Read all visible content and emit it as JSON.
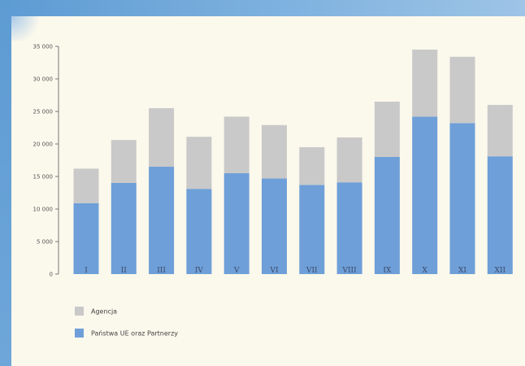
{
  "chart_data": {
    "type": "bar",
    "stacked": true,
    "categories": [
      "I",
      "II",
      "III",
      "IV",
      "V",
      "VI",
      "VII",
      "VIII",
      "IX",
      "X",
      "XI",
      "XII"
    ],
    "series": [
      {
        "name": "Państwa UE oraz Partnerzy",
        "color": "#6e9fd8",
        "values": [
          10900,
          14000,
          16500,
          13100,
          15500,
          14700,
          13700,
          14100,
          18000,
          24200,
          23200,
          18100
        ]
      },
      {
        "name": "Agencja",
        "color": "#c9c9c9",
        "values": [
          5300,
          6600,
          9000,
          8000,
          8700,
          8200,
          5800,
          6900,
          8500,
          10300,
          10200,
          7900
        ]
      }
    ],
    "ylim": [
      0,
      35000
    ],
    "yticks": [
      0,
      5000,
      10000,
      15000,
      20000,
      25000,
      30000,
      35000
    ],
    "ytick_labels": [
      "0",
      "5 000",
      "10 000",
      "15 000",
      "20 000",
      "25 000",
      "30 000",
      "35 000"
    ],
    "grid": false,
    "legend_position": "bottom-left",
    "legend": [
      {
        "label": "Agencja",
        "color": "#c9c9c9"
      },
      {
        "label": "Państwa UE oraz Partnerzy",
        "color": "#6e9fd8"
      }
    ],
    "title": "",
    "xlabel": "",
    "ylabel": ""
  }
}
